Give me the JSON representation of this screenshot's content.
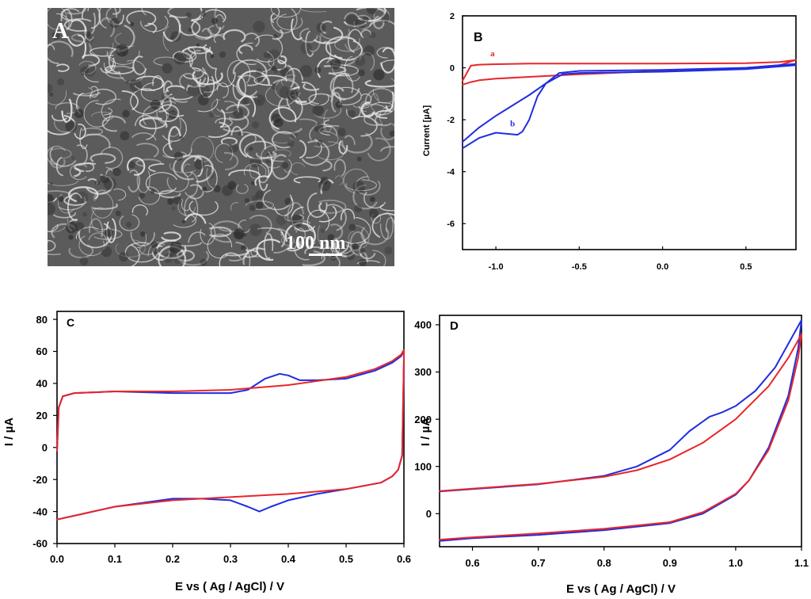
{
  "figure": {
    "panels": [
      "A",
      "B",
      "C",
      "D"
    ]
  },
  "colors": {
    "red": "#e8262a",
    "blue": "#1f2de0",
    "axis": "#000000",
    "sem_bg": "#5b5b5b",
    "sem_fiber": "#e6e6e6"
  },
  "panel_A": {
    "letter": "A",
    "scale_bar_label": "100 nm",
    "icon": "sem-micrograph-image"
  },
  "chart_data": [
    {
      "panel": "B",
      "type": "line",
      "ylabel": "Current [µA]",
      "xlabel": "",
      "xlim": [
        -1.2,
        0.8
      ],
      "ylim": [
        -7,
        2
      ],
      "xticks": [
        -1.0,
        -0.5,
        0.0,
        0.5
      ],
      "xtick_labels": [
        "-1.0",
        "-0.5",
        "0.0",
        "0.5"
      ],
      "yticks": [
        2,
        0,
        -2,
        -4,
        -6
      ],
      "ytick_labels": [
        "2",
        "0",
        "-2",
        "-4",
        "-6"
      ],
      "annotations": [
        {
          "text": "a",
          "x": -1.02,
          "y": 0.45,
          "series": "a"
        },
        {
          "text": "b",
          "x": -0.9,
          "y": -2.25,
          "series": "b"
        }
      ],
      "series": [
        {
          "name": "a",
          "color": "red",
          "x": [
            -1.2,
            -1.15,
            -1.1,
            -1.0,
            -0.8,
            -0.5,
            0.0,
            0.5,
            0.7,
            0.8,
            0.8,
            0.7,
            0.5,
            0.0,
            -0.5,
            -0.8,
            -1.0,
            -1.1,
            -1.15,
            -1.2
          ],
          "y": [
            -0.65,
            -0.55,
            -0.48,
            -0.42,
            -0.35,
            -0.25,
            -0.12,
            0.0,
            0.1,
            0.3,
            0.3,
            0.22,
            0.18,
            0.16,
            0.16,
            0.16,
            0.14,
            0.12,
            0.08,
            -0.5
          ]
        },
        {
          "name": "b",
          "color": "blue",
          "x": [
            -1.2,
            -1.1,
            -1.0,
            -0.92,
            -0.87,
            -0.84,
            -0.8,
            -0.75,
            -0.7,
            -0.6,
            -0.5,
            0.0,
            0.5,
            0.8,
            0.8,
            0.5,
            0.0,
            -0.5,
            -0.62,
            -0.7,
            -0.8,
            -0.9,
            -1.0,
            -1.1,
            -1.2
          ],
          "y": [
            -3.1,
            -2.7,
            -2.5,
            -2.55,
            -2.58,
            -2.45,
            -2.0,
            -1.1,
            -0.6,
            -0.25,
            -0.2,
            -0.15,
            -0.05,
            0.1,
            0.15,
            0.0,
            -0.08,
            -0.12,
            -0.2,
            -0.6,
            -1.05,
            -1.45,
            -1.85,
            -2.3,
            -2.85
          ]
        }
      ]
    },
    {
      "panel": "C",
      "type": "line",
      "ylabel": "I / µA",
      "xlabel": "E vs ( Ag / AgCl) / V",
      "xlim": [
        0.0,
        0.6
      ],
      "ylim": [
        -60,
        85
      ],
      "xticks": [
        0.0,
        0.1,
        0.2,
        0.3,
        0.4,
        0.5,
        0.6
      ],
      "xtick_labels": [
        "0.0",
        "0.1",
        "0.2",
        "0.3",
        "0.4",
        "0.5",
        "0.6"
      ],
      "yticks": [
        80,
        60,
        40,
        20,
        0,
        -20,
        -40,
        -60
      ],
      "ytick_labels": [
        "80",
        "60",
        "40",
        "20",
        "0",
        "-20",
        "-40",
        "-60"
      ],
      "series": [
        {
          "name": "blue",
          "color": "blue",
          "x": [
            0.0,
            0.003,
            0.01,
            0.03,
            0.1,
            0.2,
            0.3,
            0.33,
            0.36,
            0.385,
            0.4,
            0.42,
            0.45,
            0.5,
            0.55,
            0.58,
            0.595,
            0.6,
            0.6,
            0.597,
            0.59,
            0.58,
            0.56,
            0.5,
            0.45,
            0.4,
            0.37,
            0.35,
            0.33,
            0.3,
            0.25,
            0.2,
            0.1,
            0.05,
            0.0
          ],
          "y": [
            -2,
            25,
            32,
            34,
            35,
            34,
            34,
            36,
            43,
            46,
            45,
            42,
            42,
            43,
            48,
            53,
            57,
            60,
            55,
            -5,
            -14,
            -18,
            -22,
            -26,
            -29,
            -33,
            -37,
            -40,
            -37,
            -33,
            -32,
            -32,
            -37,
            -41,
            -45
          ]
        },
        {
          "name": "red",
          "color": "red",
          "x": [
            0.0,
            0.003,
            0.01,
            0.03,
            0.1,
            0.2,
            0.3,
            0.4,
            0.5,
            0.55,
            0.58,
            0.595,
            0.6,
            0.6,
            0.597,
            0.59,
            0.58,
            0.56,
            0.5,
            0.4,
            0.3,
            0.2,
            0.1,
            0.05,
            0.0
          ],
          "y": [
            -2,
            25,
            32,
            34,
            35,
            35,
            36,
            39,
            44,
            49,
            54,
            58,
            61,
            56,
            -5,
            -14,
            -18,
            -22,
            -26,
            -29,
            -31,
            -33,
            -37,
            -41,
            -45
          ]
        }
      ]
    },
    {
      "panel": "D",
      "type": "line",
      "ylabel": "I / µA",
      "xlabel": "E vs ( Ag / AgCl) / V",
      "xlim": [
        0.55,
        1.1
      ],
      "ylim": [
        -70,
        420
      ],
      "xticks": [
        0.6,
        0.7,
        0.8,
        0.9,
        1.0,
        1.1
      ],
      "xtick_labels": [
        "0.6",
        "0.7",
        "0.8",
        "0.9",
        "1.0",
        "1.1"
      ],
      "yticks": [
        400,
        300,
        200,
        100,
        0
      ],
      "ytick_labels": [
        "400",
        "300",
        "200",
        "100",
        "0"
      ],
      "series": [
        {
          "name": "blue",
          "color": "blue",
          "x": [
            0.55,
            0.6,
            0.7,
            0.8,
            0.85,
            0.9,
            0.93,
            0.96,
            0.98,
            1.0,
            1.03,
            1.06,
            1.09,
            1.1,
            1.095,
            1.08,
            1.05,
            1.02,
            1.0,
            0.95,
            0.9,
            0.8,
            0.7,
            0.6,
            0.55
          ],
          "y": [
            47,
            52,
            62,
            80,
            100,
            135,
            175,
            205,
            215,
            228,
            260,
            310,
            385,
            410,
            350,
            250,
            140,
            70,
            40,
            0,
            -20,
            -35,
            -45,
            -52,
            -58
          ]
        },
        {
          "name": "red",
          "color": "red",
          "x": [
            0.55,
            0.6,
            0.7,
            0.8,
            0.85,
            0.9,
            0.95,
            1.0,
            1.05,
            1.08,
            1.1,
            1.1,
            1.095,
            1.08,
            1.05,
            1.02,
            1.0,
            0.95,
            0.9,
            0.8,
            0.7,
            0.6,
            0.55
          ],
          "y": [
            48,
            53,
            63,
            78,
            92,
            115,
            150,
            200,
            270,
            330,
            380,
            380,
            330,
            240,
            135,
            70,
            42,
            3,
            -18,
            -32,
            -42,
            -50,
            -55
          ]
        }
      ]
    }
  ]
}
